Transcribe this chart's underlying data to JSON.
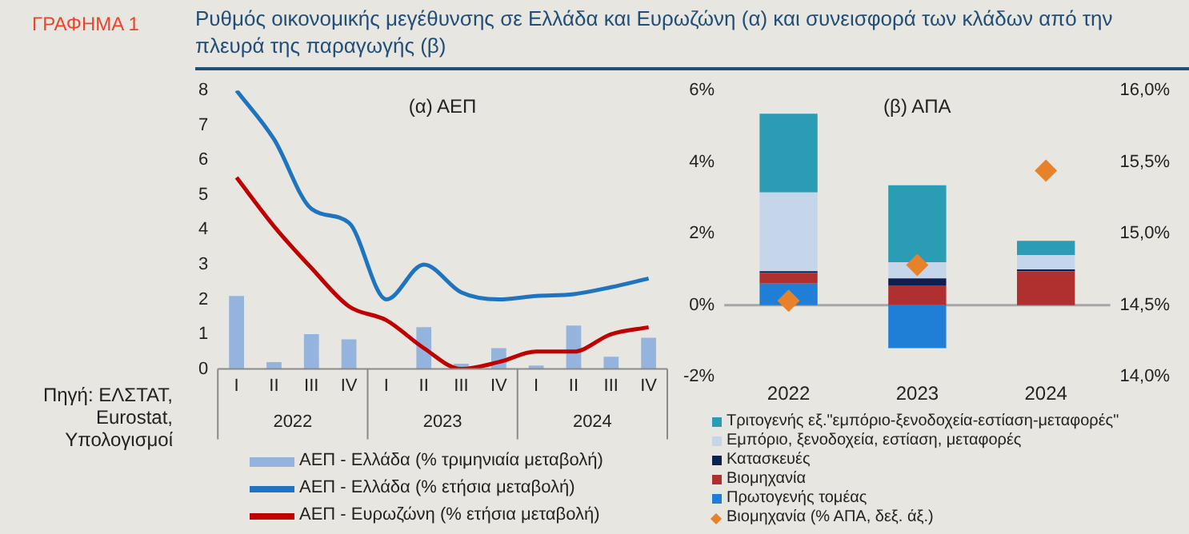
{
  "chart_data": [
    {
      "type": "line",
      "title": "Ρυθμός οικονομικής μεγέθυνσης σε Ελλάδα και Ευρωζώνη (α) και συνεισφορά των κλάδων από την πλευρά της παραγωγής (β)",
      "subtitle": "(α) ΑΕΠ",
      "annotations": [
        "ΓΡΑΦΗΜΑ 1",
        "Πηγή: ΕΛΣΤΑΤ, Eurostat, Υπολογισμοί",
        "2022",
        "2023",
        "2024"
      ],
      "categories": [
        "I",
        "II",
        "III",
        "IV",
        "I",
        "II",
        "III",
        "IV",
        "I",
        "II",
        "III",
        "IV"
      ],
      "ylim": [
        0,
        8
      ],
      "yticks": [
        0,
        1,
        2,
        3,
        4,
        5,
        6,
        7,
        8
      ],
      "grid": false,
      "legend": "bottom",
      "marker": "none",
      "line_style": "solid",
      "series": [
        {
          "type": "bar",
          "name": "ΑΕΠ - Ελλάδα (% τριμηνιαία μεταβολή)",
          "color": "#95b4dd",
          "values": [
            2.1,
            0.2,
            1.0,
            0.85,
            null,
            1.2,
            0.15,
            0.6,
            0.1,
            1.25,
            0.35,
            0.9
          ]
        },
        {
          "type": "line",
          "name": "ΑΕΠ - Ελλάδα (% ετήσια μεταβολή)",
          "color": "#1f74c0",
          "values": [
            8.0,
            6.6,
            4.6,
            4.2,
            2.0,
            3.0,
            2.2,
            2.0,
            2.1,
            2.15,
            2.35,
            2.6
          ]
        },
        {
          "type": "line",
          "name": "ΑΕΠ - Ευρωζώνη (% ετήσια μεταβολή)",
          "color": "#c00000",
          "values": [
            5.5,
            4.1,
            2.9,
            1.8,
            1.4,
            0.6,
            0.0,
            0.2,
            0.5,
            0.5,
            1.0,
            1.2
          ]
        }
      ]
    },
    {
      "type": "bar",
      "title": "(β) ΑΠΑ",
      "categories": [
        "2022",
        "2023",
        "2024"
      ],
      "stacked": true,
      "ylim": [
        -2,
        6
      ],
      "yticks": [
        {
          "value": -2,
          "label": "-2%"
        },
        {
          "value": 0,
          "label": "0%"
        },
        {
          "value": 2,
          "label": "2%"
        },
        {
          "value": 4,
          "label": "4%"
        },
        {
          "value": 6,
          "label": "6%"
        }
      ],
      "y2lim": [
        14,
        16
      ],
      "y2ticks": [
        {
          "value": 14,
          "label": "14,0%"
        },
        {
          "value": 14.5,
          "label": "14,5%"
        },
        {
          "value": 15,
          "label": "15,0%"
        },
        {
          "value": 15.5,
          "label": "15,5%"
        },
        {
          "value": 16,
          "label": "16,0%"
        }
      ],
      "grid": false,
      "legend": "bottom",
      "ref_lines": [
        {
          "axis": "y",
          "value": 0,
          "color": "#a6a6a6"
        }
      ],
      "series": [
        {
          "name": "Πρωτογενής τομέας",
          "color": "#1f7fd6",
          "values": [
            0.6,
            -1.2,
            0
          ]
        },
        {
          "name": "Βιομηχανία",
          "color": "#b03030",
          "values": [
            0.3,
            0.55,
            0.95
          ]
        },
        {
          "name": "Κατασκευές",
          "color": "#0f1f50",
          "values": [
            0.05,
            0.2,
            0.05
          ]
        },
        {
          "name": "Εμπόριο, ξενοδοχεία, εστίαση, μεταφορές",
          "color": "#c6d6ea",
          "values": [
            2.2,
            0.45,
            0.4
          ]
        },
        {
          "name": "Τριτογενής εξ.\"εμπόριο-ξενοδοχεία-εστίαση-μεταφορές\"",
          "color": "#2a9db4",
          "values": [
            2.2,
            2.15,
            0.4
          ]
        },
        {
          "type": "scatter",
          "axis": "y2",
          "marker": "diamond",
          "name": "Βιομηχανία (% ΑΠΑ, δεξ. άξ.)",
          "color": "#e8822a",
          "values": [
            14.53,
            14.78,
            15.44
          ]
        }
      ]
    }
  ]
}
